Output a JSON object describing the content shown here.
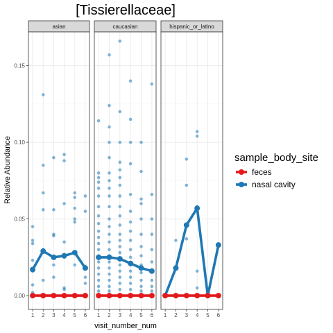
{
  "chart_data": {
    "type": "line",
    "title": "[Tissierellaceae]",
    "xlabel": "visit_number_num",
    "ylabel": "Relative Abundance",
    "x_ticks": [
      1,
      2,
      3,
      4,
      5,
      6
    ],
    "xlim": [
      0.6,
      6.4
    ],
    "ylim": [
      -0.009,
      0.172
    ],
    "y_ticks": [
      0.0,
      0.05,
      0.1,
      0.15
    ],
    "y_tick_labels": [
      "0.00",
      "0.05",
      "0.10",
      "0.15"
    ],
    "grid": true,
    "legend": {
      "title": "sample_body_site",
      "position": "right",
      "entries": [
        {
          "name": "feces",
          "color": "#e31a1c"
        },
        {
          "name": "nasal cavity",
          "color": "#1f78b4"
        }
      ]
    },
    "colors": {
      "feces": "#e31a1c",
      "nasal cavity": "#1f78b4",
      "strip": "#d9d9d9",
      "grid": "#ebebeb"
    },
    "facets": [
      {
        "name": "asian",
        "lines": [
          {
            "series": "nasal cavity",
            "x": [
              1,
              2,
              3,
              4,
              5,
              6
            ],
            "y": [
              0.017,
              0.029,
              0.025,
              0.026,
              0.028,
              0.018
            ]
          },
          {
            "series": "feces",
            "x": [
              1,
              2,
              3,
              4,
              5,
              6
            ],
            "y": [
              0.0,
              0.0,
              0.0,
              0.0,
              0.0,
              0.0
            ]
          }
        ],
        "points": [
          [
            1,
            0.045
          ],
          [
            1,
            0.036
          ],
          [
            1,
            0.034
          ],
          [
            1,
            0.023
          ],
          [
            1,
            0.016
          ],
          [
            1,
            0.007
          ],
          [
            1,
            0.002
          ],
          [
            1,
            0.0
          ],
          [
            2,
            0.131
          ],
          [
            2,
            0.085
          ],
          [
            2,
            0.067
          ],
          [
            2,
            0.056
          ],
          [
            2,
            0.03
          ],
          [
            2,
            0.01
          ],
          [
            2,
            0.0
          ],
          [
            3,
            0.09
          ],
          [
            3,
            0.056
          ],
          [
            3,
            0.04
          ],
          [
            3,
            0.039
          ],
          [
            3,
            0.02
          ],
          [
            3,
            0.012
          ],
          [
            3,
            0.0
          ],
          [
            4,
            0.092
          ],
          [
            4,
            0.088
          ],
          [
            4,
            0.06
          ],
          [
            4,
            0.035
          ],
          [
            4,
            0.025
          ],
          [
            4,
            0.005
          ],
          [
            4,
            0.004
          ],
          [
            4,
            0.0
          ],
          [
            5,
            0.067
          ],
          [
            5,
            0.064
          ],
          [
            5,
            0.057
          ],
          [
            5,
            0.05
          ],
          [
            5,
            0.048
          ],
          [
            5,
            0.028
          ],
          [
            5,
            0.02
          ],
          [
            5,
            0.0
          ],
          [
            6,
            0.065
          ],
          [
            6,
            0.055
          ],
          [
            6,
            0.019
          ],
          [
            6,
            0.012
          ],
          [
            6,
            0.008
          ],
          [
            6,
            0.0
          ]
        ]
      },
      {
        "name": "caucasian",
        "lines": [
          {
            "series": "nasal cavity",
            "x": [
              1,
              2,
              3,
              4,
              5,
              6
            ],
            "y": [
              0.025,
              0.025,
              0.024,
              0.021,
              0.018,
              0.016
            ]
          },
          {
            "series": "feces",
            "x": [
              1,
              2,
              3,
              4,
              5,
              6
            ],
            "y": [
              0.0,
              0.0,
              0.0,
              0.0,
              0.0,
              0.0
            ]
          }
        ],
        "points": [
          [
            1,
            0.114
          ],
          [
            1,
            0.08
          ],
          [
            1,
            0.077
          ],
          [
            1,
            0.074
          ],
          [
            1,
            0.07
          ],
          [
            1,
            0.065
          ],
          [
            1,
            0.058
          ],
          [
            1,
            0.052
          ],
          [
            1,
            0.047
          ],
          [
            1,
            0.042
          ],
          [
            1,
            0.038
          ],
          [
            1,
            0.034
          ],
          [
            1,
            0.03
          ],
          [
            1,
            0.026
          ],
          [
            1,
            0.022
          ],
          [
            1,
            0.018
          ],
          [
            1,
            0.014
          ],
          [
            1,
            0.01
          ],
          [
            1,
            0.006
          ],
          [
            1,
            0.003
          ],
          [
            1,
            0.0
          ],
          [
            2,
            0.157
          ],
          [
            2,
            0.124
          ],
          [
            2,
            0.11
          ],
          [
            2,
            0.1
          ],
          [
            2,
            0.09
          ],
          [
            2,
            0.08
          ],
          [
            2,
            0.075
          ],
          [
            2,
            0.07
          ],
          [
            2,
            0.065
          ],
          [
            2,
            0.058
          ],
          [
            2,
            0.05
          ],
          [
            2,
            0.045
          ],
          [
            2,
            0.04
          ],
          [
            2,
            0.035
          ],
          [
            2,
            0.03
          ],
          [
            2,
            0.026
          ],
          [
            2,
            0.022
          ],
          [
            2,
            0.018
          ],
          [
            2,
            0.014
          ],
          [
            2,
            0.01
          ],
          [
            2,
            0.006
          ],
          [
            2,
            0.003
          ],
          [
            2,
            0.0
          ],
          [
            3,
            0.166
          ],
          [
            3,
            0.12
          ],
          [
            3,
            0.1
          ],
          [
            3,
            0.087
          ],
          [
            3,
            0.082
          ],
          [
            3,
            0.077
          ],
          [
            3,
            0.072
          ],
          [
            3,
            0.065
          ],
          [
            3,
            0.058
          ],
          [
            3,
            0.052
          ],
          [
            3,
            0.046
          ],
          [
            3,
            0.04
          ],
          [
            3,
            0.036
          ],
          [
            3,
            0.032
          ],
          [
            3,
            0.028
          ],
          [
            3,
            0.024
          ],
          [
            3,
            0.02
          ],
          [
            3,
            0.016
          ],
          [
            3,
            0.012
          ],
          [
            3,
            0.008
          ],
          [
            3,
            0.004
          ],
          [
            3,
            0.0
          ],
          [
            4,
            0.14
          ],
          [
            4,
            0.115
          ],
          [
            4,
            0.1
          ],
          [
            4,
            0.086
          ],
          [
            4,
            0.066
          ],
          [
            4,
            0.055
          ],
          [
            4,
            0.048
          ],
          [
            4,
            0.042
          ],
          [
            4,
            0.036
          ],
          [
            4,
            0.03
          ],
          [
            4,
            0.025
          ],
          [
            4,
            0.02
          ],
          [
            4,
            0.016
          ],
          [
            4,
            0.012
          ],
          [
            4,
            0.008
          ],
          [
            4,
            0.004
          ],
          [
            4,
            0.0
          ],
          [
            5,
            0.1
          ],
          [
            5,
            0.081
          ],
          [
            5,
            0.063
          ],
          [
            5,
            0.06
          ],
          [
            5,
            0.05
          ],
          [
            5,
            0.04
          ],
          [
            5,
            0.032
          ],
          [
            5,
            0.026
          ],
          [
            5,
            0.02
          ],
          [
            5,
            0.015
          ],
          [
            5,
            0.01
          ],
          [
            5,
            0.006
          ],
          [
            5,
            0.003
          ],
          [
            5,
            0.0
          ],
          [
            6,
            0.138
          ],
          [
            6,
            0.066
          ],
          [
            6,
            0.05
          ],
          [
            6,
            0.04
          ],
          [
            6,
            0.03
          ],
          [
            6,
            0.022
          ],
          [
            6,
            0.016
          ],
          [
            6,
            0.01
          ],
          [
            6,
            0.006
          ],
          [
            6,
            0.003
          ],
          [
            6,
            0.0
          ]
        ]
      },
      {
        "name": "hispanic_or_latino",
        "lines": [
          {
            "series": "nasal cavity",
            "x": [
              1,
              2,
              3,
              4,
              5,
              6
            ],
            "y": [
              0.0,
              0.018,
              0.046,
              0.057,
              0.0,
              0.033
            ]
          },
          {
            "series": "feces",
            "x": [
              1,
              2,
              3,
              4,
              5,
              6
            ],
            "y": [
              0.0,
              0.0,
              0.0,
              0.0,
              0.0,
              0.0
            ]
          }
        ],
        "points": [
          [
            1,
            0.0
          ],
          [
            2,
            0.036
          ],
          [
            2,
            0.018
          ],
          [
            2,
            0.0
          ],
          [
            3,
            0.089
          ],
          [
            3,
            0.072
          ],
          [
            3,
            0.037
          ],
          [
            3,
            0.0
          ],
          [
            4,
            0.107
          ],
          [
            4,
            0.104
          ],
          [
            4,
            0.058
          ],
          [
            4,
            0.016
          ],
          [
            4,
            0.005
          ],
          [
            4,
            0.0
          ],
          [
            5,
            0.0
          ],
          [
            6,
            0.033
          ],
          [
            6,
            0.0
          ]
        ]
      }
    ]
  }
}
